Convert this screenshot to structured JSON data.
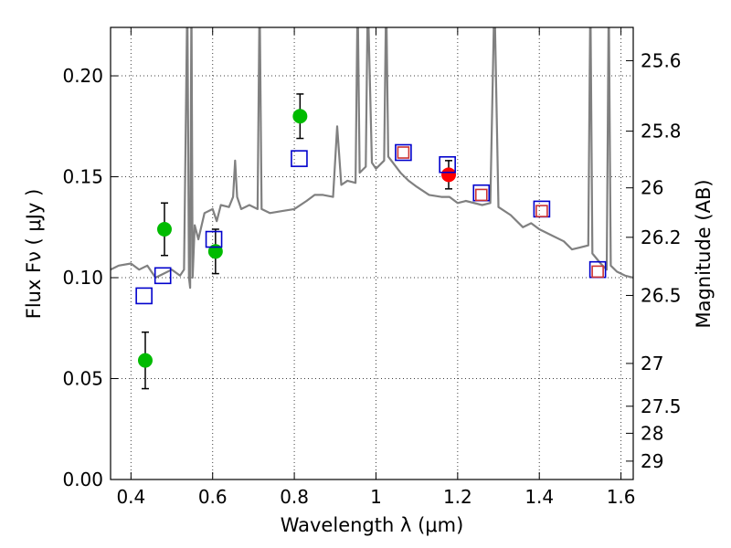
{
  "chart_data": {
    "type": "scatter",
    "title": "",
    "xlabel": "Wavelength  λ (μm)",
    "ylabel": "Flux  Fν  ( μJy )",
    "ylabel_right": "Magnitude (AB)",
    "xlim": [
      0.35,
      1.63
    ],
    "ylim": [
      0.0,
      0.224
    ],
    "grid": true,
    "x_ticks": [
      {
        "value": 0.4,
        "label": "0.4"
      },
      {
        "value": 0.6,
        "label": "0.6"
      },
      {
        "value": 0.8,
        "label": "0.8"
      },
      {
        "value": 1.0,
        "label": "1"
      },
      {
        "value": 1.2,
        "label": "1.2"
      },
      {
        "value": 1.4,
        "label": "1.4"
      },
      {
        "value": 1.6,
        "label": "1.6"
      }
    ],
    "y_ticks": [
      {
        "value": 0.0,
        "label": "0.00"
      },
      {
        "value": 0.05,
        "label": "0.05"
      },
      {
        "value": 0.1,
        "label": "0.10"
      },
      {
        "value": 0.15,
        "label": "0.15"
      },
      {
        "value": 0.2,
        "label": "0.20"
      }
    ],
    "right_ticks": [
      {
        "flux": 0.2075,
        "label": "25.6"
      },
      {
        "flux": 0.1726,
        "label": "25.8"
      },
      {
        "flux": 0.1445,
        "label": "26"
      },
      {
        "flux": 0.12,
        "label": "26.2"
      },
      {
        "flux": 0.0912,
        "label": "26.5"
      },
      {
        "flux": 0.0575,
        "label": "27"
      },
      {
        "flux": 0.0363,
        "label": "27.5"
      },
      {
        "flux": 0.0229,
        "label": "28"
      },
      {
        "flux": 0.0091,
        "label": "29"
      }
    ],
    "series": [
      {
        "name": "Model spectrum",
        "kind": "line",
        "color": "#808080",
        "points": [
          [
            0.35,
            0.104
          ],
          [
            0.37,
            0.106
          ],
          [
            0.4,
            0.107
          ],
          [
            0.42,
            0.104
          ],
          [
            0.44,
            0.106
          ],
          [
            0.46,
            0.1
          ],
          [
            0.48,
            0.102
          ],
          [
            0.5,
            0.104
          ],
          [
            0.52,
            0.101
          ],
          [
            0.53,
            0.104
          ],
          [
            0.535,
            0.19
          ],
          [
            0.538,
            0.24
          ],
          [
            0.542,
            0.1
          ],
          [
            0.545,
            0.095
          ],
          [
            0.548,
            0.24
          ],
          [
            0.551,
            0.1
          ],
          [
            0.556,
            0.126
          ],
          [
            0.565,
            0.119
          ],
          [
            0.58,
            0.132
          ],
          [
            0.6,
            0.134
          ],
          [
            0.61,
            0.128
          ],
          [
            0.62,
            0.136
          ],
          [
            0.64,
            0.135
          ],
          [
            0.65,
            0.14
          ],
          [
            0.655,
            0.158
          ],
          [
            0.66,
            0.14
          ],
          [
            0.67,
            0.134
          ],
          [
            0.69,
            0.136
          ],
          [
            0.71,
            0.134
          ],
          [
            0.715,
            0.24
          ],
          [
            0.72,
            0.134
          ],
          [
            0.74,
            0.132
          ],
          [
            0.77,
            0.133
          ],
          [
            0.8,
            0.134
          ],
          [
            0.83,
            0.138
          ],
          [
            0.85,
            0.141
          ],
          [
            0.87,
            0.141
          ],
          [
            0.895,
            0.14
          ],
          [
            0.905,
            0.175
          ],
          [
            0.915,
            0.146
          ],
          [
            0.93,
            0.148
          ],
          [
            0.95,
            0.147
          ],
          [
            0.955,
            0.24
          ],
          [
            0.96,
            0.152
          ],
          [
            0.975,
            0.155
          ],
          [
            0.98,
            0.24
          ],
          [
            0.99,
            0.157
          ],
          [
            1.0,
            0.154
          ],
          [
            1.02,
            0.158
          ],
          [
            1.025,
            0.24
          ],
          [
            1.03,
            0.16
          ],
          [
            1.06,
            0.152
          ],
          [
            1.08,
            0.148
          ],
          [
            1.1,
            0.145
          ],
          [
            1.13,
            0.141
          ],
          [
            1.16,
            0.14
          ],
          [
            1.18,
            0.14
          ],
          [
            1.2,
            0.137
          ],
          [
            1.22,
            0.138
          ],
          [
            1.26,
            0.136
          ],
          [
            1.28,
            0.137
          ],
          [
            1.29,
            0.24
          ],
          [
            1.3,
            0.135
          ],
          [
            1.33,
            0.131
          ],
          [
            1.36,
            0.125
          ],
          [
            1.38,
            0.127
          ],
          [
            1.4,
            0.124
          ],
          [
            1.43,
            0.121
          ],
          [
            1.46,
            0.118
          ],
          [
            1.48,
            0.114
          ],
          [
            1.5,
            0.115
          ],
          [
            1.52,
            0.116
          ],
          [
            1.525,
            0.24
          ],
          [
            1.53,
            0.112
          ],
          [
            1.55,
            0.107
          ],
          [
            1.565,
            0.104
          ],
          [
            1.57,
            0.24
          ],
          [
            1.575,
            0.106
          ],
          [
            1.59,
            0.103
          ],
          [
            1.61,
            0.101
          ],
          [
            1.63,
            0.1
          ]
        ]
      },
      {
        "name": "Photometry (green)",
        "kind": "points_with_errors",
        "color": "#00bb00",
        "points": [
          {
            "x": 0.435,
            "y": 0.059,
            "err": 0.014
          },
          {
            "x": 0.482,
            "y": 0.124,
            "err": 0.013
          },
          {
            "x": 0.607,
            "y": 0.113,
            "err": 0.011
          },
          {
            "x": 0.814,
            "y": 0.18,
            "err": 0.011
          }
        ]
      },
      {
        "name": "Photometry (red)",
        "kind": "points_with_errors",
        "color": "#ff0000",
        "points": [
          {
            "x": 1.178,
            "y": 0.151,
            "err": 0.007
          }
        ]
      },
      {
        "name": "Model photometry (blue squares)",
        "kind": "open_squares",
        "color": "#0000cc",
        "points": [
          {
            "x": 0.432,
            "y": 0.091
          },
          {
            "x": 0.478,
            "y": 0.101
          },
          {
            "x": 0.603,
            "y": 0.119
          },
          {
            "x": 0.812,
            "y": 0.159
          },
          {
            "x": 1.067,
            "y": 0.162
          },
          {
            "x": 1.175,
            "y": 0.156
          },
          {
            "x": 1.258,
            "y": 0.142
          },
          {
            "x": 1.406,
            "y": 0.134
          },
          {
            "x": 1.543,
            "y": 0.104
          }
        ]
      },
      {
        "name": "Model photometry (red squares)",
        "kind": "open_squares",
        "color": "#cc3333",
        "points": [
          {
            "x": 1.067,
            "y": 0.162
          },
          {
            "x": 1.258,
            "y": 0.141
          },
          {
            "x": 1.406,
            "y": 0.133
          },
          {
            "x": 1.543,
            "y": 0.103
          }
        ]
      }
    ]
  }
}
